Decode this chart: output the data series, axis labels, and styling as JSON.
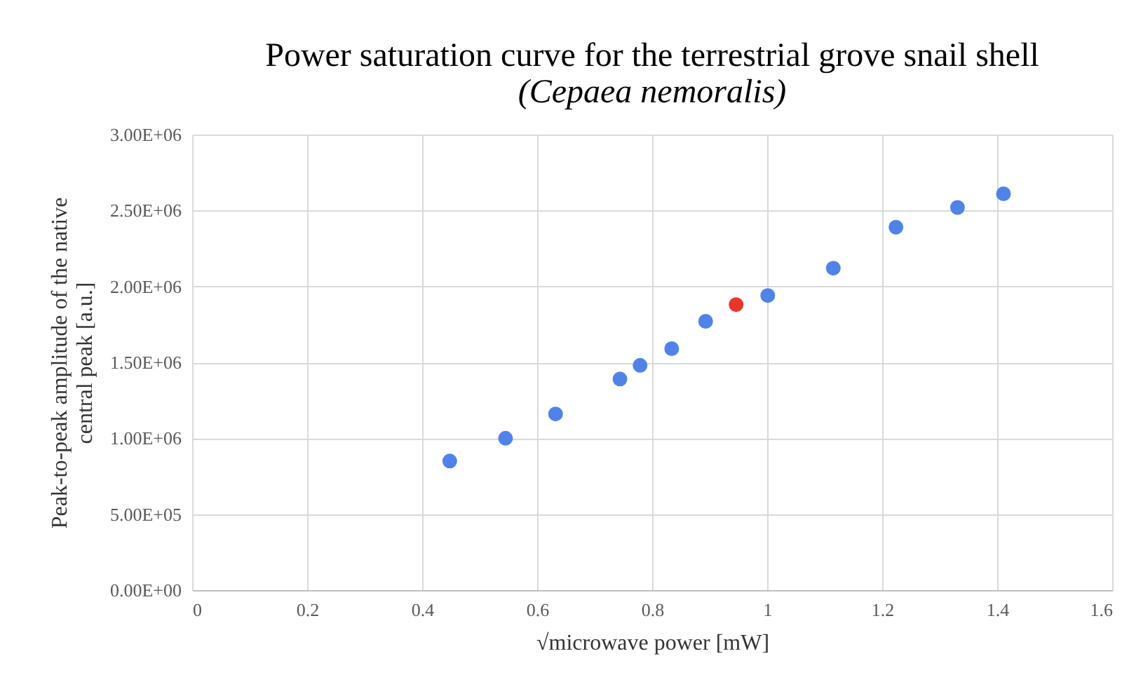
{
  "chart_data": {
    "type": "scatter",
    "title": "Power saturation curve for the terrestrial grove snail shell",
    "subtitle": "(Cepaea nemoralis)",
    "xlabel": "√microwave power [mW]",
    "ylabel": "Peak-to-peak amplitude of the native central peak [a.u.]",
    "series": [
      {
        "color": "#5083e8",
        "x": [
          0.448,
          0.545,
          0.632,
          0.744,
          0.779,
          0.834,
          0.893,
          1.001,
          1.115,
          1.224,
          1.331,
          1.411
        ],
        "values": [
          850000,
          1000000,
          1160000,
          1390000,
          1480000,
          1590000,
          1770000,
          1940000,
          2120000,
          2390000,
          2520000,
          2610000
        ]
      },
      {
        "color": "#e8372a",
        "x": [
          0.946
        ],
        "values": [
          1880000
        ]
      }
    ],
    "xlim": [
      0,
      1.6
    ],
    "xticks": [
      0,
      0.2,
      0.4,
      0.6,
      0.8,
      1,
      1.2,
      1.4,
      1.6
    ],
    "ylim": [
      0,
      3000000
    ],
    "yticks": [
      {
        "value": 0,
        "label": "0.00E+00"
      },
      {
        "value": 500000,
        "label": "5.00E+05"
      },
      {
        "value": 1000000,
        "label": "1.00E+06"
      },
      {
        "value": 1500000,
        "label": "1.50E+06"
      },
      {
        "value": 2000000,
        "label": "2.00E+06"
      },
      {
        "value": 2500000,
        "label": "2.50E+06"
      },
      {
        "value": 3000000,
        "label": "3.00E+06"
      }
    ],
    "grid": true
  }
}
